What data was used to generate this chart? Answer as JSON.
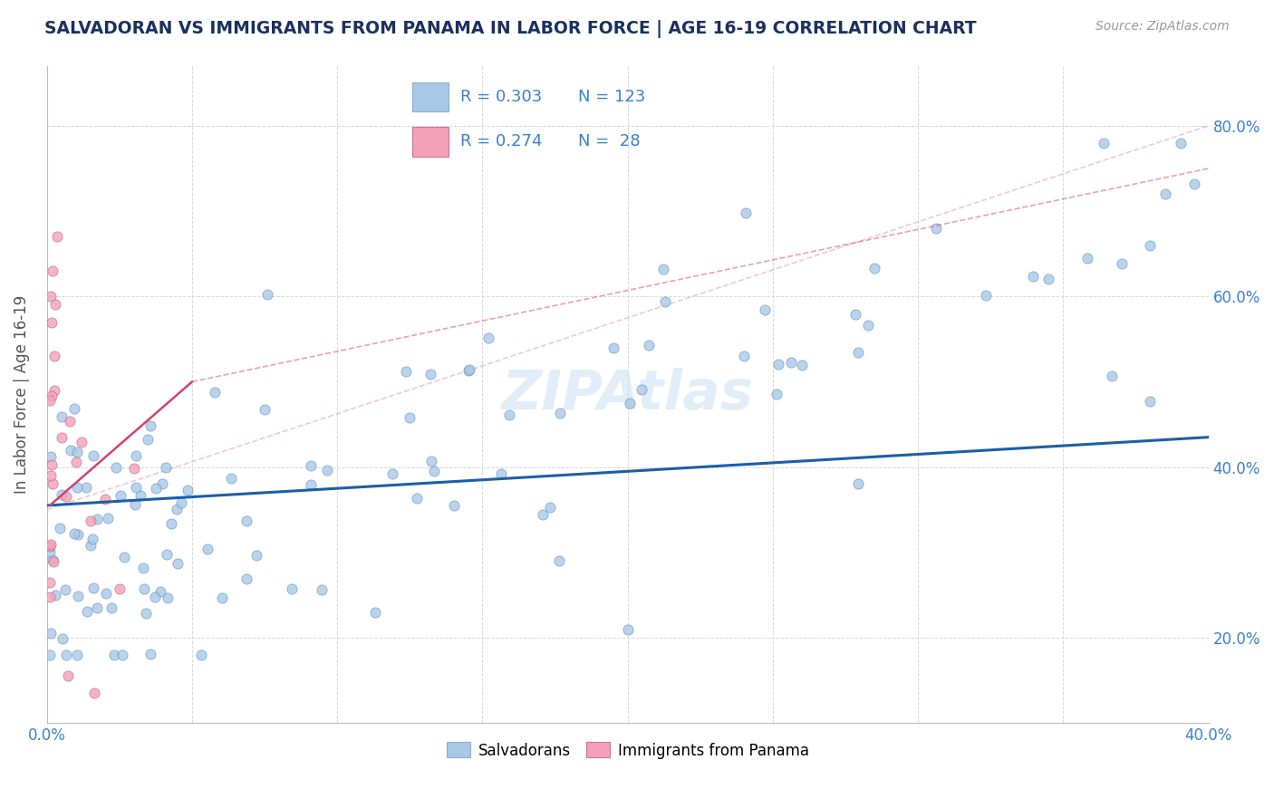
{
  "title": "SALVADORAN VS IMMIGRANTS FROM PANAMA IN LABOR FORCE | AGE 16-19 CORRELATION CHART",
  "source_text": "Source: ZipAtlas.com",
  "ylabel": "In Labor Force | Age 16-19",
  "xlim": [
    0.0,
    0.4
  ],
  "ylim": [
    0.1,
    0.87
  ],
  "blue_color": "#a8c8e8",
  "pink_color": "#f4a0b8",
  "trend_blue": "#1a5fa8",
  "trend_pink": "#d44070",
  "diag_color": "#e0a0b8",
  "title_color": "#1a3060",
  "label_color": "#3a80d0",
  "background_color": "#ffffff",
  "watermark": "ZIPAtlas",
  "grid_color": "#d8d8d8"
}
